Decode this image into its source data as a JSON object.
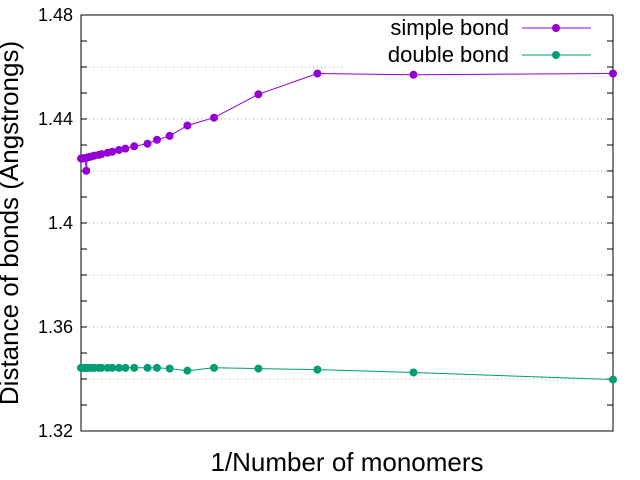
{
  "chart_data": {
    "type": "line",
    "title": "",
    "xlabel": "1/Number of monomers",
    "ylabel": "Distance of bonds (Angstrongs)",
    "xlim": [
      0,
      0.5
    ],
    "ylim": [
      1.32,
      1.48
    ],
    "yticks": [
      "1.32",
      "1.36",
      "1.4",
      "1.44",
      "1.48"
    ],
    "xticks": [],
    "grid": "horizontal-dotted",
    "legend": "top-right",
    "series": [
      {
        "name": "simple bond",
        "color": "#9400d3",
        "x": [
          0.0,
          0.001,
          0.002,
          0.003,
          0.004,
          0.005,
          0.006,
          0.008,
          0.01,
          0.0125,
          0.0167,
          0.0192,
          0.025,
          0.0294,
          0.0357,
          0.0417,
          0.05,
          0.0625,
          0.0714,
          0.0833,
          0.1,
          0.125,
          0.1667,
          0.2222,
          0.3125,
          0.5
        ],
        "y": [
          1.4248,
          1.4248,
          1.4249,
          1.4249,
          1.425,
          1.4201,
          1.4252,
          1.4254,
          1.4256,
          1.4259,
          1.4262,
          1.4265,
          1.427,
          1.4274,
          1.4281,
          1.4286,
          1.4295,
          1.4305,
          1.432,
          1.4335,
          1.4375,
          1.4405,
          1.4495,
          1.4575,
          1.457,
          1.4575
        ]
      },
      {
        "name": "double bond",
        "color": "#009e73",
        "x": [
          0.0,
          0.001,
          0.002,
          0.003,
          0.004,
          0.005,
          0.006,
          0.008,
          0.01,
          0.0125,
          0.0167,
          0.0192,
          0.025,
          0.0294,
          0.0357,
          0.0417,
          0.05,
          0.0625,
          0.0714,
          0.0833,
          0.1,
          0.125,
          0.1667,
          0.2222,
          0.3125,
          0.5
        ],
        "y": [
          1.3443,
          1.3443,
          1.3443,
          1.3443,
          1.3443,
          1.3443,
          1.3443,
          1.3443,
          1.3443,
          1.3443,
          1.3443,
          1.3443,
          1.3443,
          1.3443,
          1.3443,
          1.3443,
          1.3443,
          1.3443,
          1.3443,
          1.344,
          1.3432,
          1.3443,
          1.344,
          1.3436,
          1.3425,
          1.3398
        ]
      }
    ]
  }
}
